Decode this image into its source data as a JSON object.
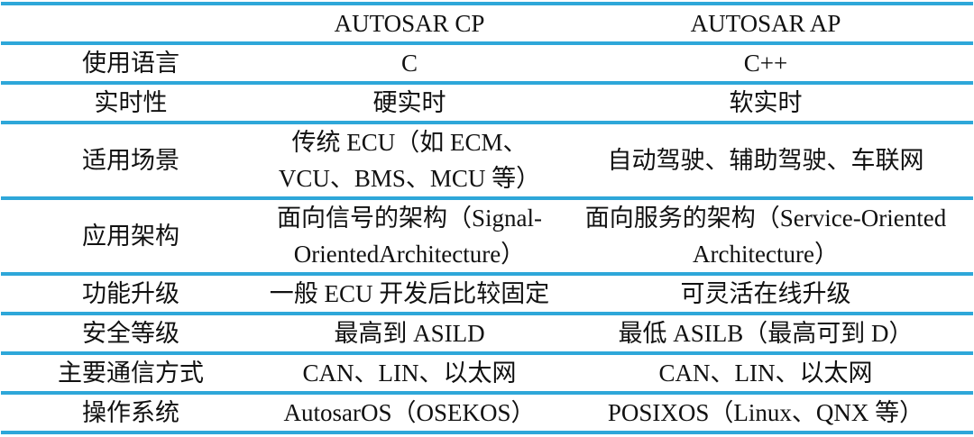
{
  "colors": {
    "line": "#2ea7d9",
    "text": "#111111",
    "background": "#ffffff"
  },
  "table": {
    "columns": [
      "",
      "AUTOSAR CP",
      "AUTOSAR AP"
    ],
    "rows": [
      {
        "label": "使用语言",
        "cp": "C",
        "ap": "C++"
      },
      {
        "label": "实时性",
        "cp": "硬实时",
        "ap": "软实时"
      },
      {
        "label": "适用场景",
        "cp": "传统 ECU（如 ECM、VCU、BMS、MCU 等）",
        "ap": "自动驾驶、辅助驾驶、车联网"
      },
      {
        "label": "应用架构",
        "cp": "面向信号的架构（Signal-OrientedArchitecture）",
        "ap": "面向服务的架构（Service-Oriented Architecture）"
      },
      {
        "label": "功能升级",
        "cp": "一般 ECU 开发后比较固定",
        "ap": "可灵活在线升级"
      },
      {
        "label": "安全等级",
        "cp": "最高到 ASILD",
        "ap": "最低 ASILB（最高可到 D）"
      },
      {
        "label": "主要通信方式",
        "cp": "CAN、LIN、以太网",
        "ap": "CAN、LIN、以太网"
      },
      {
        "label": "操作系统",
        "cp": "AutosarOS（OSEKOS）",
        "ap": "POSIXOS（Linux、QNX 等）"
      }
    ]
  }
}
